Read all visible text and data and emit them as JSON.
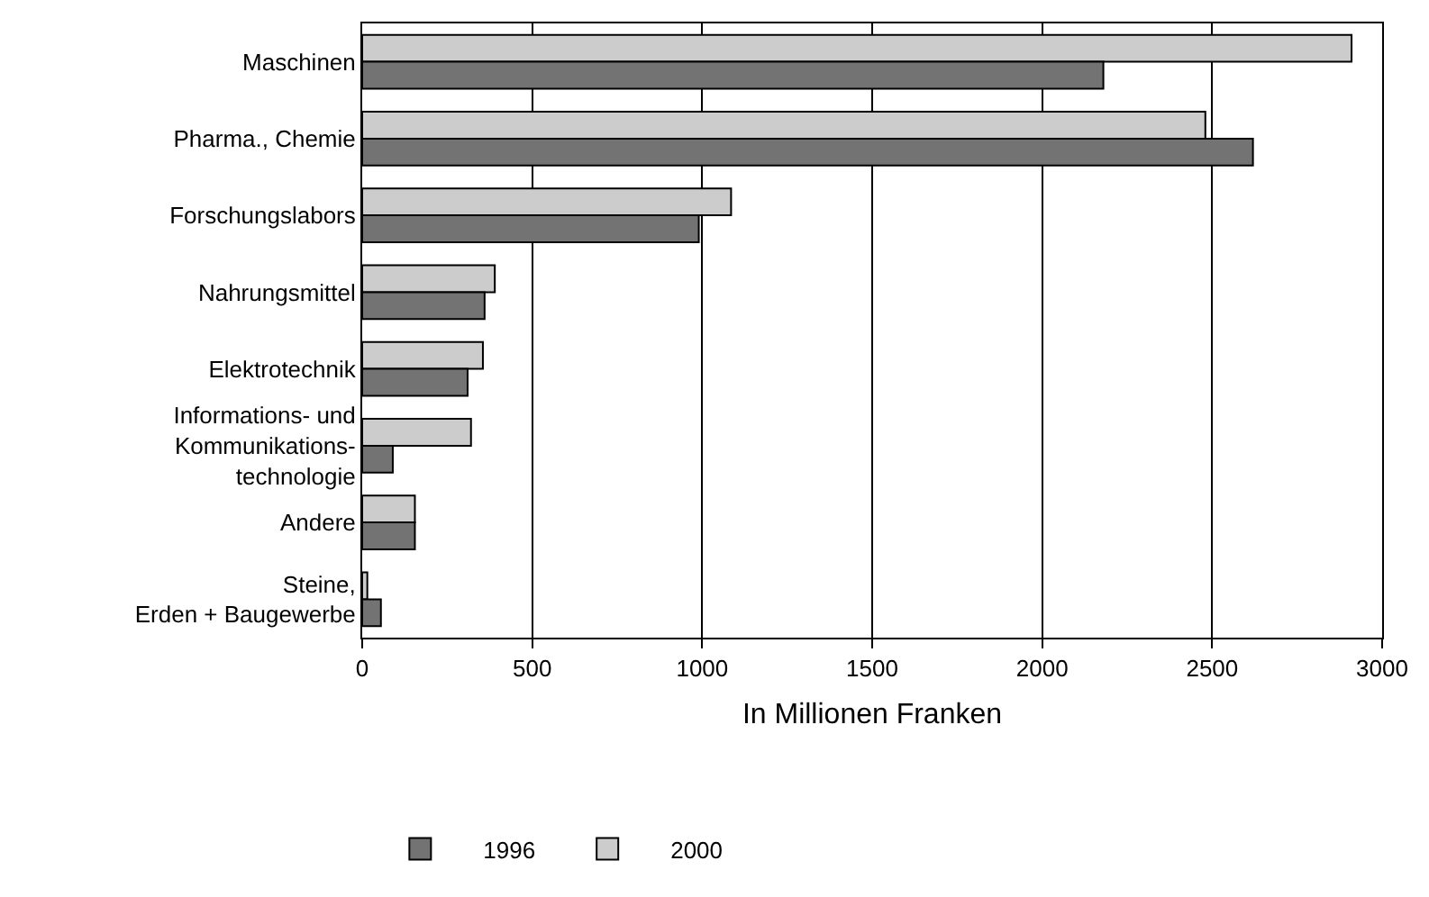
{
  "chart_data": {
    "type": "bar",
    "orientation": "horizontal",
    "xlabel": "In Millionen Franken",
    "categories": [
      "Maschinen",
      "Pharma., Chemie",
      "Forschungslabors",
      "Nahrungsmittel",
      "Elektrotechnik",
      "Informations- und\nKommunikations-\ntechnologie",
      "Andere",
      "Steine,\nErden + Baugewerbe"
    ],
    "series": [
      {
        "name": "1996",
        "color": "#737373",
        "values": [
          2180,
          2620,
          990,
          360,
          310,
          90,
          155,
          55
        ]
      },
      {
        "name": "2000",
        "color": "#cccccc",
        "values": [
          2910,
          2480,
          1085,
          390,
          355,
          320,
          155,
          15
        ]
      }
    ],
    "xlim": [
      0,
      3000
    ],
    "xticks": [
      0,
      500,
      1000,
      1500,
      2000,
      2500,
      3000
    ],
    "grid": "x",
    "legend": "bottom"
  }
}
